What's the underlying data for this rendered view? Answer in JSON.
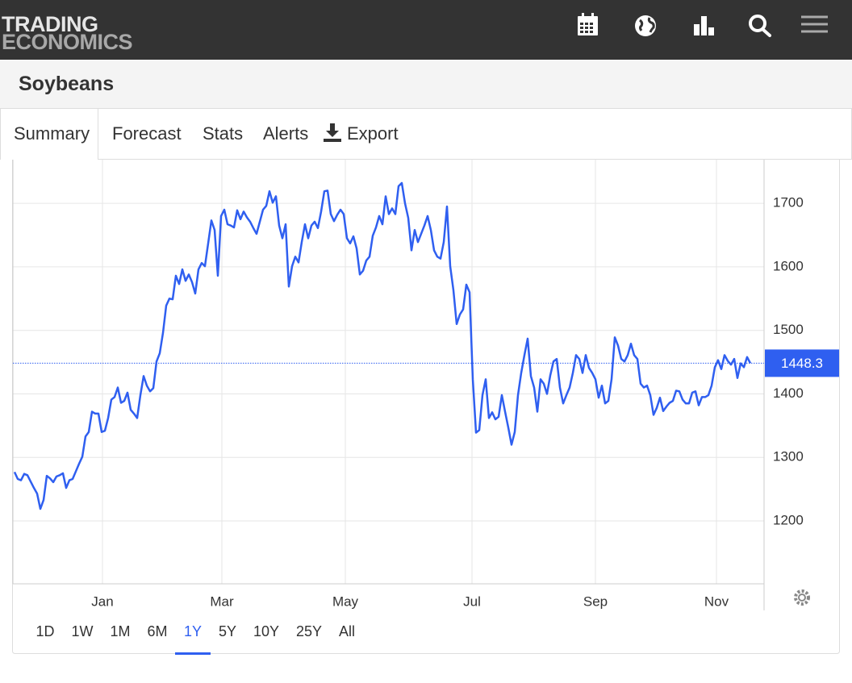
{
  "header": {
    "logo_top": "TRADING",
    "logo_bottom": "ECONOMICS"
  },
  "page_title": "Soybeans",
  "tabs": [
    "Summary",
    "Forecast",
    "Stats",
    "Alerts",
    "Export"
  ],
  "active_tab": 0,
  "ranges": [
    "1D",
    "1W",
    "1M",
    "6M",
    "1Y",
    "5Y",
    "10Y",
    "25Y",
    "All"
  ],
  "active_range": 4,
  "chart_data": {
    "type": "line",
    "color": "#2f5ff0",
    "values": [
      1277,
      1266,
      1264,
      1274,
      1272,
      1262,
      1252,
      1243,
      1219,
      1233,
      1271,
      1267,
      1261,
      1270,
      1272,
      1275,
      1252,
      1264,
      1266,
      1278,
      1290,
      1301,
      1333,
      1340,
      1372,
      1369,
      1369,
      1340,
      1342,
      1362,
      1391,
      1395,
      1410,
      1386,
      1389,
      1402,
      1375,
      1369,
      1362,
      1398,
      1428,
      1413,
      1404,
      1409,
      1451,
      1464,
      1496,
      1539,
      1550,
      1549,
      1586,
      1573,
      1596,
      1578,
      1588,
      1576,
      1558,
      1596,
      1606,
      1601,
      1637,
      1673,
      1658,
      1586,
      1680,
      1690,
      1667,
      1665,
      1662,
      1689,
      1675,
      1687,
      1678,
      1671,
      1661,
      1652,
      1671,
      1690,
      1696,
      1719,
      1701,
      1711,
      1665,
      1645,
      1667,
      1569,
      1601,
      1616,
      1607,
      1639,
      1667,
      1645,
      1665,
      1671,
      1661,
      1687,
      1719,
      1720,
      1683,
      1672,
      1682,
      1690,
      1683,
      1645,
      1637,
      1648,
      1629,
      1588,
      1594,
      1610,
      1616,
      1649,
      1662,
      1680,
      1667,
      1711,
      1683,
      1692,
      1683,
      1727,
      1732,
      1700,
      1677,
      1626,
      1658,
      1639,
      1652,
      1665,
      1680,
      1658,
      1626,
      1616,
      1613,
      1639,
      1695,
      1601,
      1563,
      1510,
      1525,
      1533,
      1572,
      1560,
      1423,
      1339,
      1343,
      1398,
      1423,
      1362,
      1371,
      1360,
      1364,
      1398,
      1372,
      1347,
      1320,
      1340,
      1398,
      1433,
      1461,
      1487,
      1428,
      1410,
      1372,
      1423,
      1416,
      1400,
      1429,
      1451,
      1455,
      1410,
      1385,
      1398,
      1410,
      1433,
      1461,
      1455,
      1433,
      1461,
      1441,
      1433,
      1423,
      1394,
      1413,
      1385,
      1389,
      1423,
      1489,
      1476,
      1455,
      1451,
      1461,
      1479,
      1461,
      1455,
      1416,
      1410,
      1413,
      1398,
      1367,
      1378,
      1394,
      1373,
      1380,
      1386,
      1389,
      1405,
      1404,
      1391,
      1385,
      1385,
      1402,
      1404,
      1382,
      1395,
      1395,
      1398,
      1413,
      1442,
      1453,
      1439,
      1461,
      1452,
      1446,
      1455,
      1425,
      1448,
      1442,
      1458,
      1448.3
    ],
    "xlim": [
      -0.5,
      232.25
    ],
    "xticks": [
      {
        "value": 27.25,
        "label": "Jan"
      },
      {
        "value": 64.25,
        "label": "Mar"
      },
      {
        "value": 102.5,
        "label": "May"
      },
      {
        "value": 141.75,
        "label": "Jul"
      },
      {
        "value": 180,
        "label": "Sep"
      },
      {
        "value": 217.5,
        "label": "Nov"
      }
    ],
    "ylim": [
      1101,
      1770
    ],
    "yticks": [
      1200,
      1300,
      1400,
      1500,
      1600,
      1700
    ],
    "grid": true,
    "last_value": 1448.3
  }
}
